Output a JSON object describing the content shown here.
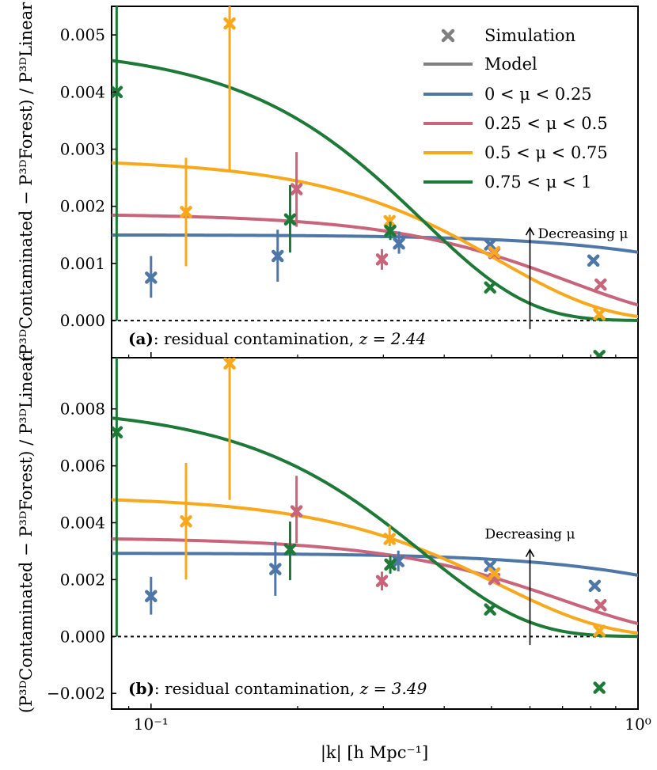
{
  "chart_data": {
    "type": "line",
    "shared_x": {
      "label": "|k| [h Mpc⁻¹]",
      "scale": "log",
      "xlim": [
        0.083,
        1.0
      ],
      "major_ticks": [
        {
          "value": 0.1,
          "label": "10⁻¹"
        },
        {
          "value": 1.0,
          "label": "10⁰"
        }
      ],
      "minor_ticks": [
        0.09,
        0.2,
        0.3,
        0.4,
        0.5,
        0.6,
        0.7,
        0.8,
        0.9
      ]
    },
    "ylabel": "(P³ᴰContaminated − P³ᴰForest) / P³ᴰLinear",
    "legend": {
      "position": "top-right",
      "entries": [
        {
          "label": "Simulation",
          "kind": "marker",
          "color": "#808080"
        },
        {
          "label": "Model",
          "kind": "line",
          "color": "#808080"
        },
        {
          "label": "0 < μ < 0.25",
          "kind": "line",
          "color": "#4c77a8"
        },
        {
          "label": "0.25 < μ < 0.5",
          "kind": "line",
          "color": "#c9647a"
        },
        {
          "label": "0.5 < μ < 0.75",
          "kind": "line",
          "color": "#f9a81c"
        },
        {
          "label": "0.75 < μ < 1",
          "kind": "line",
          "color": "#1d7a36"
        }
      ]
    },
    "series_colors": {
      "mu1": "#4c77a8",
      "mu2": "#c9647a",
      "mu3": "#f9a81c",
      "mu4": "#1d7a36"
    },
    "panels": [
      {
        "id": "a",
        "tag": "(a)",
        "caption": ": residual contamination, ",
        "z_label": "z = 2.44",
        "ylim": [
          -0.00065,
          0.0055
        ],
        "yticks": [
          {
            "value": 0.0,
            "label": "0.000"
          },
          {
            "value": 0.001,
            "label": "0.001"
          },
          {
            "value": 0.002,
            "label": "0.002"
          },
          {
            "value": 0.003,
            "label": "0.003"
          },
          {
            "value": 0.004,
            "label": "0.004"
          },
          {
            "value": 0.005,
            "label": "0.005"
          }
        ],
        "annotation": {
          "text": "Decreasing μ",
          "k": 0.6,
          "y_from": -0.00015,
          "y_to": 0.00162
        },
        "models": [
          {
            "name": "0 < μ < 0.25",
            "color_key": "mu1",
            "a": 0.0015,
            "m": 0.0,
            "b": 0.0,
            "k0": 2.1
          },
          {
            "name": "0.25 < μ < 0.5",
            "color_key": "mu2",
            "a": 0.00187,
            "m": 0.0,
            "b": 0.0,
            "k0": 0.72
          },
          {
            "name": "0.5 < μ < 0.75",
            "color_key": "mu3",
            "a": 0.00283,
            "m": 0.0,
            "b": 0.0,
            "k0": 0.52
          },
          {
            "name": "0.75 < μ < 1",
            "color_key": "mu4",
            "a": 0.0048,
            "m": 0.0,
            "b": 0.0,
            "k0": 0.36
          }
        ],
        "points": [
          {
            "series": "mu1",
            "k": 0.1,
            "y": 0.00075,
            "lo": 0.0004,
            "hi": 0.00113
          },
          {
            "series": "mu1",
            "k": 0.182,
            "y": 0.00113,
            "lo": 0.00068,
            "hi": 0.00159
          },
          {
            "series": "mu1",
            "k": 0.323,
            "y": 0.00135,
            "lo": 0.00117,
            "hi": 0.00156
          },
          {
            "series": "mu1",
            "k": 0.497,
            "y": 0.00133,
            "lo": 0.00133,
            "hi": 0.00133
          },
          {
            "series": "mu1",
            "k": 0.81,
            "y": 0.00105,
            "lo": 0.00105,
            "hi": 0.00105
          },
          {
            "series": "mu2",
            "k": 0.199,
            "y": 0.0023,
            "lo": 0.00164,
            "hi": 0.00295
          },
          {
            "series": "mu2",
            "k": 0.298,
            "y": 0.00107,
            "lo": 0.00089,
            "hi": 0.00125
          },
          {
            "series": "mu2",
            "k": 0.507,
            "y": 0.00118,
            "lo": 0.00118,
            "hi": 0.00118
          },
          {
            "series": "mu2",
            "k": 0.838,
            "y": 0.00063,
            "lo": 0.00063,
            "hi": 0.00063
          },
          {
            "series": "mu3",
            "k": 0.118,
            "y": 0.0019,
            "lo": 0.00095,
            "hi": 0.00285
          },
          {
            "series": "mu3",
            "k": 0.145,
            "y": 0.0052,
            "lo": 0.0026,
            "hi": 0.0056
          },
          {
            "series": "mu3",
            "k": 0.309,
            "y": 0.00174,
            "lo": 0.00162,
            "hi": 0.00185
          },
          {
            "series": "mu3",
            "k": 0.507,
            "y": 0.0012,
            "lo": 0.0012,
            "hi": 0.0012
          },
          {
            "series": "mu3",
            "k": 0.833,
            "y": 0.00011,
            "lo": 0.00011,
            "hi": 0.00011
          },
          {
            "series": "mu4",
            "k": 0.085,
            "y": 0.004,
            "lo": 0.0,
            "hi": 0.0055
          },
          {
            "series": "mu4",
            "k": 0.193,
            "y": 0.00177,
            "lo": 0.00119,
            "hi": 0.00237
          },
          {
            "series": "mu4",
            "k": 0.31,
            "y": 0.00157,
            "lo": 0.00141,
            "hi": 0.00173
          },
          {
            "series": "mu4",
            "k": 0.497,
            "y": 0.00058,
            "lo": 0.00058,
            "hi": 0.00058
          },
          {
            "series": "mu4",
            "k": 0.833,
            "y": -0.00062,
            "lo": -0.00062,
            "hi": -0.00062
          }
        ]
      },
      {
        "id": "b",
        "tag": "(b)",
        "caption": ": residual contamination, ",
        "z_label": "z = 3.49",
        "ylim": [
          -0.00255,
          0.0098
        ],
        "yticks": [
          {
            "value": -0.002,
            "label": "−0.002"
          },
          {
            "value": 0.0,
            "label": "0.000"
          },
          {
            "value": 0.002,
            "label": "0.002"
          },
          {
            "value": 0.004,
            "label": "0.004"
          },
          {
            "value": 0.006,
            "label": "0.006"
          },
          {
            "value": 0.008,
            "label": "0.008"
          }
        ],
        "annotation": {
          "text": "Decreasing μ",
          "k": 0.6,
          "y_from": -0.0003,
          "y_to": 0.00305
        },
        "models": [
          {
            "name": "0 < μ < 0.25",
            "color_key": "mu1",
            "a": 0.00293,
            "m": 0.0,
            "b": 0.0,
            "k0": 1.8
          },
          {
            "name": "0.25 < μ < 0.5",
            "color_key": "mu2",
            "a": 0.00348,
            "m": 0.0,
            "b": 0.0,
            "k0": 0.7
          },
          {
            "name": "0.5 < μ < 0.75",
            "color_key": "mu3",
            "a": 0.00493,
            "m": 0.0,
            "b": 0.0,
            "k0": 0.52
          },
          {
            "name": "0.75 < μ < 1",
            "color_key": "mu4",
            "a": 0.0081,
            "m": 0.0,
            "b": 0.0,
            "k0": 0.36
          }
        ],
        "points": [
          {
            "series": "mu1",
            "k": 0.1,
            "y": 0.00142,
            "lo": 0.00077,
            "hi": 0.0021
          },
          {
            "series": "mu1",
            "k": 0.18,
            "y": 0.00237,
            "lo": 0.00143,
            "hi": 0.00333
          },
          {
            "series": "mu1",
            "k": 0.322,
            "y": 0.00265,
            "lo": 0.00229,
            "hi": 0.00302
          },
          {
            "series": "mu1",
            "k": 0.497,
            "y": 0.00248,
            "lo": 0.00248,
            "hi": 0.00248
          },
          {
            "series": "mu1",
            "k": 0.815,
            "y": 0.00178,
            "lo": 0.00178,
            "hi": 0.00178
          },
          {
            "series": "mu2",
            "k": 0.199,
            "y": 0.0044,
            "lo": 0.00328,
            "hi": 0.00565
          },
          {
            "series": "mu2",
            "k": 0.298,
            "y": 0.00195,
            "lo": 0.00162,
            "hi": 0.00228
          },
          {
            "series": "mu2",
            "k": 0.507,
            "y": 0.00202,
            "lo": 0.00202,
            "hi": 0.00202
          },
          {
            "series": "mu2",
            "k": 0.838,
            "y": 0.0011,
            "lo": 0.0011,
            "hi": 0.0011
          },
          {
            "series": "mu3",
            "k": 0.118,
            "y": 0.00405,
            "lo": 0.002,
            "hi": 0.0061
          },
          {
            "series": "mu3",
            "k": 0.145,
            "y": 0.0096,
            "lo": 0.0048,
            "hi": 0.0098
          },
          {
            "series": "mu3",
            "k": 0.309,
            "y": 0.00343,
            "lo": 0.00318,
            "hi": 0.00389
          },
          {
            "series": "mu3",
            "k": 0.507,
            "y": 0.00222,
            "lo": 0.00222,
            "hi": 0.00222
          },
          {
            "series": "mu3",
            "k": 0.833,
            "y": 0.0002,
            "lo": 0.0002,
            "hi": 0.0002
          },
          {
            "series": "mu4",
            "k": 0.085,
            "y": 0.00718,
            "lo": 0.0,
            "hi": 0.0098
          },
          {
            "series": "mu4",
            "k": 0.193,
            "y": 0.00306,
            "lo": 0.00198,
            "hi": 0.00404
          },
          {
            "series": "mu4",
            "k": 0.31,
            "y": 0.00253,
            "lo": 0.00221,
            "hi": 0.00285
          },
          {
            "series": "mu4",
            "k": 0.497,
            "y": 0.00095,
            "lo": 0.00095,
            "hi": 0.00095
          },
          {
            "series": "mu4",
            "k": 0.833,
            "y": -0.0018,
            "lo": -0.0018,
            "hi": -0.0018
          }
        ]
      }
    ]
  }
}
